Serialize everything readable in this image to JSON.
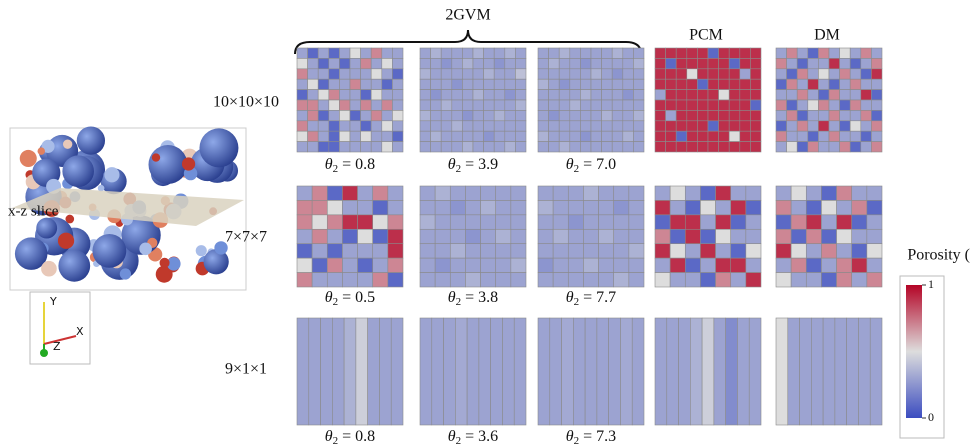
{
  "header": "2GVM",
  "column_labels": [
    "PCM",
    "DM"
  ],
  "slice_label": "x-z slice",
  "axes_triad": [
    "Y",
    "X",
    "Z"
  ],
  "colorbar": {
    "title": "Porosity (-)",
    "lim": [
      0,
      1
    ],
    "ticks": [
      1,
      0
    ]
  },
  "grid_rows": [
    {
      "label": "10×10×10",
      "panels": [
        {
          "label": [
            "θ",
            "2",
            " = 0.8"
          ],
          "values": [
            [
              0.3,
              0.1,
              0.3,
              0.1,
              0.3,
              0.5,
              0.3,
              0.7,
              0.3,
              0.3
            ],
            [
              0.5,
              0.3,
              0.1,
              0.3,
              0.1,
              0.3,
              0.7,
              0.3,
              0.5,
              0.3
            ],
            [
              0.7,
              0.3,
              0.3,
              0.1,
              0.3,
              0.3,
              0.3,
              0.5,
              0.3,
              0.1
            ],
            [
              0.3,
              0.5,
              0.1,
              0.3,
              0.3,
              0.7,
              0.3,
              0.3,
              0.1,
              0.3
            ],
            [
              0.1,
              0.3,
              0.5,
              0.7,
              0.3,
              0.3,
              0.1,
              0.5,
              0.3,
              0.3
            ],
            [
              0.7,
              0.7,
              0.3,
              0.5,
              0.7,
              0.3,
              0.7,
              0.3,
              0.7,
              0.3
            ],
            [
              0.3,
              0.7,
              0.1,
              0.3,
              0.5,
              0.1,
              0.3,
              0.7,
              0.3,
              0.5
            ],
            [
              0.7,
              0.3,
              0.3,
              0.1,
              0.3,
              0.3,
              0.1,
              0.3,
              0.5,
              0.3
            ],
            [
              0.5,
              0.7,
              0.3,
              0.1,
              0.5,
              0.3,
              0.5,
              0.3,
              0.3,
              0.1
            ],
            [
              0.3,
              0.3,
              0.1,
              0.1,
              0.3,
              0.3,
              0.3,
              0.3,
              0.5,
              0.3
            ]
          ]
        },
        {
          "label": [
            "θ",
            "2",
            " = 3.9"
          ],
          "values": [
            [
              0.3,
              0.35,
              0.3,
              0.3,
              0.3,
              0.35,
              0.3,
              0.3,
              0.35,
              0.3
            ],
            [
              0.3,
              0.3,
              0.25,
              0.3,
              0.35,
              0.3,
              0.3,
              0.25,
              0.3,
              0.3
            ],
            [
              0.35,
              0.3,
              0.3,
              0.3,
              0.3,
              0.3,
              0.35,
              0.3,
              0.3,
              0.4
            ],
            [
              0.3,
              0.3,
              0.3,
              0.25,
              0.3,
              0.3,
              0.3,
              0.3,
              0.3,
              0.3
            ],
            [
              0.3,
              0.25,
              0.3,
              0.3,
              0.3,
              0.35,
              0.3,
              0.3,
              0.25,
              0.3
            ],
            [
              0.3,
              0.3,
              0.35,
              0.3,
              0.3,
              0.3,
              0.3,
              0.3,
              0.3,
              0.35
            ],
            [
              0.35,
              0.3,
              0.3,
              0.3,
              0.25,
              0.3,
              0.3,
              0.35,
              0.3,
              0.3
            ],
            [
              0.3,
              0.3,
              0.3,
              0.35,
              0.3,
              0.3,
              0.3,
              0.3,
              0.3,
              0.3
            ],
            [
              0.3,
              0.35,
              0.3,
              0.3,
              0.3,
              0.3,
              0.25,
              0.3,
              0.3,
              0.3
            ],
            [
              0.3,
              0.3,
              0.3,
              0.3,
              0.35,
              0.3,
              0.3,
              0.3,
              0.35,
              0.3
            ]
          ]
        },
        {
          "label": [
            "θ",
            "2",
            " = 7.0"
          ],
          "values": [
            [
              0.3,
              0.3,
              0.35,
              0.3,
              0.3,
              0.3,
              0.3,
              0.35,
              0.3,
              0.3
            ],
            [
              0.3,
              0.35,
              0.3,
              0.3,
              0.25,
              0.3,
              0.3,
              0.3,
              0.3,
              0.35
            ],
            [
              0.3,
              0.3,
              0.3,
              0.3,
              0.3,
              0.35,
              0.3,
              0.25,
              0.3,
              0.3
            ],
            [
              0.35,
              0.3,
              0.25,
              0.3,
              0.3,
              0.3,
              0.3,
              0.3,
              0.3,
              0.3
            ],
            [
              0.3,
              0.3,
              0.3,
              0.3,
              0.35,
              0.3,
              0.3,
              0.3,
              0.25,
              0.3
            ],
            [
              0.3,
              0.3,
              0.3,
              0.35,
              0.3,
              0.3,
              0.3,
              0.3,
              0.3,
              0.3
            ],
            [
              0.3,
              0.25,
              0.3,
              0.3,
              0.3,
              0.3,
              0.35,
              0.3,
              0.3,
              0.35
            ],
            [
              0.3,
              0.3,
              0.3,
              0.3,
              0.3,
              0.3,
              0.3,
              0.3,
              0.3,
              0.3
            ],
            [
              0.35,
              0.3,
              0.3,
              0.3,
              0.25,
              0.3,
              0.3,
              0.3,
              0.35,
              0.3
            ],
            [
              0.3,
              0.3,
              0.35,
              0.3,
              0.3,
              0.3,
              0.3,
              0.3,
              0.3,
              0.3
            ]
          ]
        },
        {
          "values": [
            [
              0.9,
              0.9,
              0.9,
              0.9,
              0.9,
              0.1,
              0.9,
              0.9,
              0.9,
              0.9
            ],
            [
              0.9,
              0.1,
              0.9,
              0.9,
              0.9,
              0.9,
              0.9,
              0.1,
              0.9,
              0.9
            ],
            [
              0.9,
              0.9,
              0.9,
              0.5,
              0.9,
              0.9,
              0.9,
              0.9,
              0.3,
              0.9
            ],
            [
              0.9,
              0.9,
              0.9,
              0.9,
              0.1,
              0.9,
              0.9,
              0.9,
              0.9,
              0.9
            ],
            [
              0.3,
              0.9,
              0.9,
              0.9,
              0.9,
              0.9,
              0.5,
              0.9,
              0.9,
              0.9
            ],
            [
              0.9,
              0.9,
              0.9,
              0.9,
              0.9,
              0.9,
              0.9,
              0.9,
              0.9,
              0.1
            ],
            [
              0.9,
              0.3,
              0.9,
              0.9,
              0.9,
              0.9,
              0.9,
              0.9,
              0.9,
              0.9
            ],
            [
              0.9,
              0.9,
              0.9,
              0.9,
              0.9,
              0.1,
              0.9,
              0.9,
              0.9,
              0.9
            ],
            [
              0.9,
              0.9,
              0.1,
              0.9,
              0.9,
              0.9,
              0.9,
              0.5,
              0.9,
              0.9
            ],
            [
              0.9,
              0.9,
              0.9,
              0.9,
              0.9,
              0.9,
              0.9,
              0.9,
              0.9,
              0.9
            ]
          ]
        },
        {
          "values": [
            [
              0.3,
              0.7,
              0.3,
              0.1,
              0.7,
              0.3,
              0.5,
              0.3,
              0.7,
              0.3
            ],
            [
              0.7,
              0.3,
              0.1,
              0.3,
              0.3,
              0.9,
              0.3,
              0.1,
              0.3,
              0.7
            ],
            [
              0.3,
              0.1,
              0.7,
              0.3,
              0.5,
              0.3,
              0.7,
              0.3,
              0.1,
              0.9
            ],
            [
              0.1,
              0.7,
              0.3,
              0.9,
              0.3,
              0.1,
              0.3,
              0.7,
              0.3,
              0.3
            ],
            [
              0.3,
              0.3,
              0.7,
              0.3,
              0.1,
              0.7,
              0.3,
              0.3,
              0.9,
              0.1
            ],
            [
              0.7,
              0.1,
              0.3,
              0.5,
              0.7,
              0.3,
              0.1,
              0.7,
              0.3,
              0.3
            ],
            [
              0.3,
              0.7,
              0.1,
              0.3,
              0.3,
              0.7,
              0.3,
              0.3,
              0.7,
              0.1
            ],
            [
              0.1,
              0.3,
              0.7,
              0.3,
              0.9,
              0.3,
              0.1,
              0.5,
              0.3,
              0.7
            ],
            [
              0.7,
              0.3,
              0.3,
              0.1,
              0.3,
              0.7,
              0.3,
              0.3,
              0.1,
              0.3
            ],
            [
              0.3,
              0.5,
              0.1,
              0.7,
              0.3,
              0.3,
              0.7,
              0.1,
              0.3,
              0.7
            ]
          ]
        }
      ]
    },
    {
      "label": "7×7×7",
      "panels": [
        {
          "label": [
            "θ",
            "2",
            " = 0.5"
          ],
          "values": [
            [
              0.3,
              0.7,
              0.1,
              0.9,
              0.3,
              0.7,
              0.3
            ],
            [
              0.7,
              0.7,
              0.5,
              0.3,
              0.3,
              0.1,
              0.3
            ],
            [
              0.7,
              0.5,
              0.7,
              0.9,
              0.9,
              0.5,
              0.7
            ],
            [
              0.3,
              0.7,
              0.3,
              0.1,
              0.5,
              0.1,
              0.9
            ],
            [
              0.1,
              0.3,
              0.1,
              0.3,
              0.3,
              0.3,
              0.9
            ],
            [
              0.5,
              0.1,
              0.7,
              0.3,
              0.1,
              0.3,
              0.7
            ],
            [
              0.7,
              0.3,
              0.3,
              0.3,
              0.3,
              0.7,
              0.1
            ]
          ]
        },
        {
          "label": [
            "θ",
            "2",
            " = 3.8"
          ],
          "values": [
            [
              0.3,
              0.35,
              0.3,
              0.3,
              0.3,
              0.3,
              0.3
            ],
            [
              0.3,
              0.3,
              0.25,
              0.3,
              0.35,
              0.3,
              0.3
            ],
            [
              0.35,
              0.3,
              0.3,
              0.3,
              0.3,
              0.3,
              0.3
            ],
            [
              0.3,
              0.3,
              0.3,
              0.25,
              0.3,
              0.35,
              0.3
            ],
            [
              0.3,
              0.3,
              0.35,
              0.3,
              0.3,
              0.3,
              0.3
            ],
            [
              0.3,
              0.25,
              0.3,
              0.3,
              0.3,
              0.3,
              0.35
            ],
            [
              0.3,
              0.3,
              0.3,
              0.35,
              0.3,
              0.3,
              0.3
            ]
          ]
        },
        {
          "label": [
            "θ",
            "2",
            " = 7.7"
          ],
          "values": [
            [
              0.3,
              0.3,
              0.3,
              0.35,
              0.3,
              0.3,
              0.3
            ],
            [
              0.35,
              0.3,
              0.3,
              0.3,
              0.3,
              0.25,
              0.3
            ],
            [
              0.3,
              0.3,
              0.25,
              0.3,
              0.3,
              0.3,
              0.3
            ],
            [
              0.3,
              0.35,
              0.3,
              0.3,
              0.35,
              0.3,
              0.3
            ],
            [
              0.3,
              0.3,
              0.3,
              0.3,
              0.3,
              0.3,
              0.35
            ],
            [
              0.25,
              0.3,
              0.3,
              0.35,
              0.3,
              0.3,
              0.3
            ],
            [
              0.3,
              0.3,
              0.3,
              0.3,
              0.3,
              0.35,
              0.3
            ]
          ]
        },
        {
          "values": [
            [
              0.3,
              0.5,
              0.3,
              0.1,
              0.9,
              0.3,
              0.3
            ],
            [
              0.9,
              0.3,
              0.1,
              0.5,
              0.3,
              0.9,
              0.1
            ],
            [
              0.1,
              0.9,
              0.9,
              0.3,
              0.9,
              0.1,
              0.3
            ],
            [
              0.7,
              0.1,
              0.9,
              0.1,
              0.5,
              0.3,
              0.3
            ],
            [
              0.9,
              0.5,
              0.3,
              0.9,
              0.3,
              0.1,
              0.5
            ],
            [
              0.3,
              0.9,
              0.1,
              0.3,
              0.9,
              0.9,
              0.3
            ],
            [
              0.5,
              0.3,
              0.3,
              0.1,
              0.7,
              0.3,
              0.9
            ]
          ]
        },
        {
          "values": [
            [
              0.3,
              0.5,
              0.3,
              0.1,
              0.7,
              0.3,
              0.3
            ],
            [
              0.7,
              0.3,
              0.1,
              0.5,
              0.3,
              0.7,
              0.1
            ],
            [
              0.1,
              0.7,
              0.9,
              0.3,
              0.9,
              0.1,
              0.3
            ],
            [
              0.7,
              0.1,
              0.7,
              0.1,
              0.5,
              0.3,
              0.3
            ],
            [
              0.9,
              0.5,
              0.3,
              0.7,
              0.3,
              0.1,
              0.5
            ],
            [
              0.3,
              0.7,
              0.1,
              0.3,
              0.7,
              0.9,
              0.3
            ],
            [
              0.5,
              0.3,
              0.3,
              0.1,
              0.7,
              0.3,
              0.7
            ]
          ]
        }
      ]
    },
    {
      "label": "9×1×1",
      "panels": [
        {
          "label": [
            "θ",
            "2",
            " = 0.8"
          ],
          "values": [
            [
              0.3,
              0.3,
              0.3,
              0.3,
              0.35,
              0.45,
              0.3,
              0.3,
              0.3
            ]
          ]
        },
        {
          "label": [
            "θ",
            "2",
            " = 3.6"
          ],
          "values": [
            [
              0.3,
              0.3,
              0.3,
              0.32,
              0.3,
              0.3,
              0.3,
              0.3,
              0.3
            ]
          ]
        },
        {
          "label": [
            "θ",
            "2",
            " = 7.3"
          ],
          "values": [
            [
              0.3,
              0.3,
              0.32,
              0.3,
              0.3,
              0.3,
              0.3,
              0.32,
              0.3
            ]
          ]
        },
        {
          "values": [
            [
              0.3,
              0.3,
              0.3,
              0.35,
              0.45,
              0.3,
              0.22,
              0.3,
              0.3
            ]
          ]
        },
        {
          "values": [
            [
              0.5,
              0.3,
              0.3,
              0.3,
              0.3,
              0.3,
              0.3,
              0.3,
              0.3
            ]
          ]
        }
      ]
    }
  ]
}
